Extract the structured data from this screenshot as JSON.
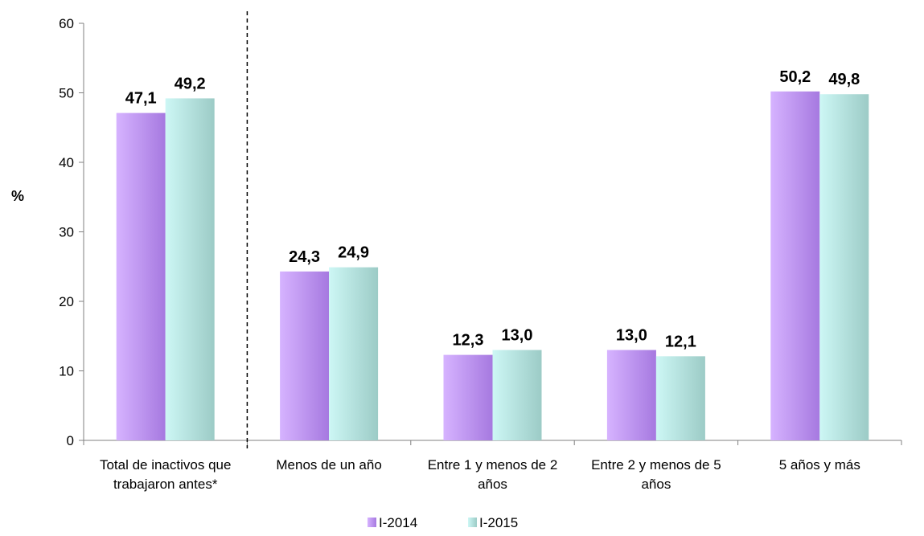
{
  "chart_data": {
    "type": "bar",
    "ylabel": "%",
    "ylim": [
      0,
      60
    ],
    "yticks": [
      0,
      10,
      20,
      30,
      40,
      50,
      60
    ],
    "categories": [
      [
        "Total de inactivos que",
        "trabajaron antes*"
      ],
      [
        "Menos de un año"
      ],
      [
        "Entre 1 y menos de 2",
        "años"
      ],
      [
        "Entre 2 y menos de 5",
        "años"
      ],
      [
        "5 años y más"
      ]
    ],
    "series": [
      {
        "name": "I-2014",
        "values": [
          47.1,
          24.3,
          12.3,
          13.0,
          50.2
        ],
        "labels": [
          "47,1",
          "24,3",
          "12,3",
          "13,0",
          "50,2"
        ],
        "color": "#c9a0f5"
      },
      {
        "name": "I-2015",
        "values": [
          49.2,
          24.9,
          13.0,
          12.1,
          49.8
        ],
        "labels": [
          "49,2",
          "24,9",
          "13,0",
          "12,1",
          "49,8"
        ],
        "color": "#bfecea"
      }
    ],
    "divider": "dashed vertical line after first category",
    "legend_position": "bottom",
    "grid": false
  }
}
